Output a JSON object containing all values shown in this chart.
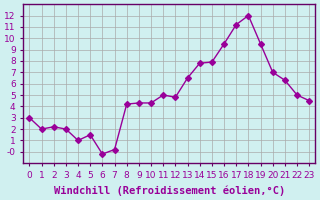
{
  "x": [
    0,
    1,
    2,
    3,
    4,
    5,
    6,
    7,
    8,
    9,
    10,
    11,
    12,
    13,
    14,
    15,
    16,
    17,
    18,
    19,
    20,
    21,
    22,
    23
  ],
  "y": [
    3,
    2,
    2.2,
    2,
    1,
    1.5,
    -0.2,
    0.2,
    4.2,
    4.3,
    4.3,
    5,
    4.8,
    6.5,
    7.8,
    7.9,
    9.5,
    11.2,
    12,
    9.5,
    7,
    6.3,
    5,
    4.5
  ],
  "line_color": "#990099",
  "marker": "D",
  "marker_size": 3,
  "bg_color": "#d0f0f0",
  "grid_color": "#aaaaaa",
  "xlabel": "Windchill (Refroidissement éolien,°C)",
  "xlim": [
    -0.5,
    23.5
  ],
  "ylim": [
    -1,
    13
  ],
  "yticks": [
    0,
    1,
    2,
    3,
    4,
    5,
    6,
    7,
    8,
    9,
    10,
    11,
    12
  ],
  "ytick_labels": [
    "-0",
    "1",
    "2",
    "3",
    "4",
    "5",
    "6",
    "7",
    "8",
    "9",
    "10",
    "11",
    "12"
  ],
  "xticks": [
    0,
    1,
    2,
    3,
    4,
    5,
    6,
    7,
    8,
    9,
    10,
    11,
    12,
    13,
    14,
    15,
    16,
    17,
    18,
    19,
    20,
    21,
    22,
    23
  ],
  "tick_label_fontsize": 6.5,
  "xlabel_fontsize": 7.5,
  "spine_color": "#660066"
}
